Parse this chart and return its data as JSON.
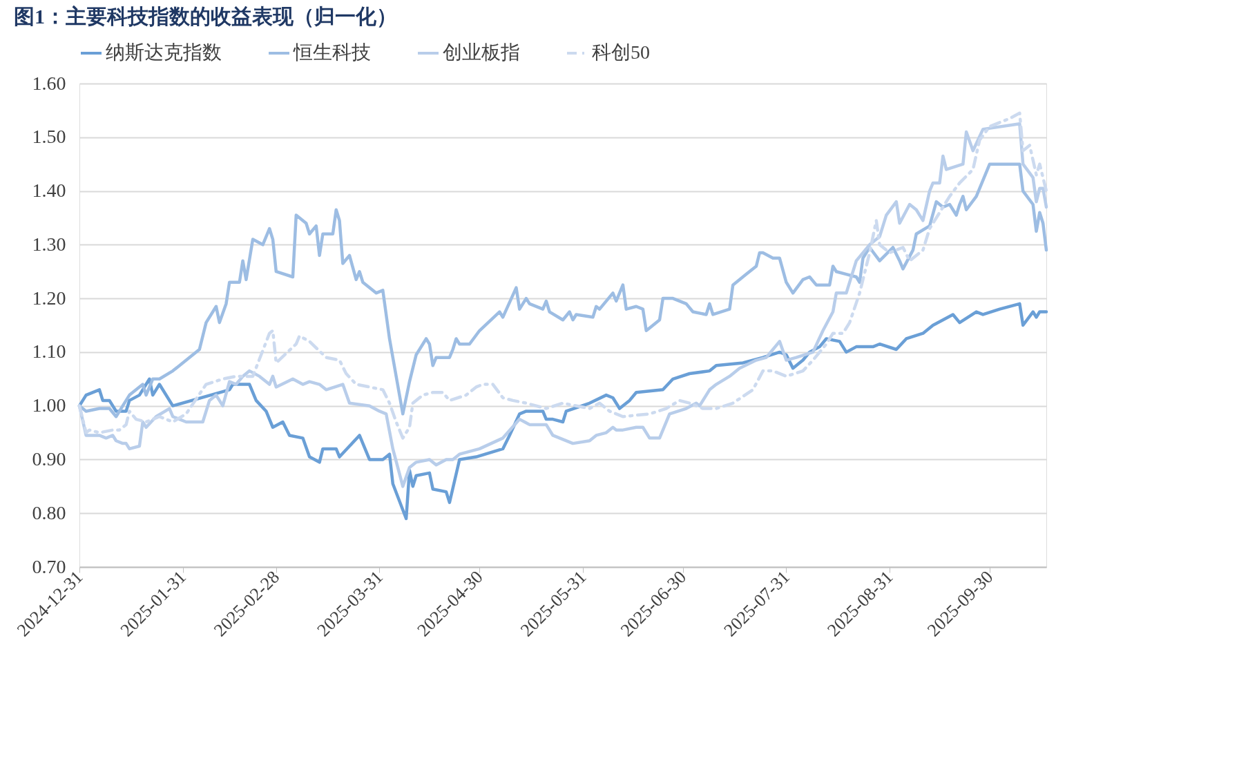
{
  "chart_data": {
    "type": "line",
    "title": "图1：主要科技指数的收益表现（归一化）",
    "xlim": [
      "2024-12-31",
      "2025-10-17"
    ],
    "xticks": [
      "2024-12-31",
      "2025-01-31",
      "2025-02-28",
      "2025-03-31",
      "2025-04-30",
      "2025-05-31",
      "2025-06-30",
      "2025-07-31",
      "2025-08-31",
      "2025-09-30"
    ],
    "ylim": [
      0.7,
      1.6
    ],
    "yticks": [
      {
        "value": 0.7,
        "label": "0.70"
      },
      {
        "value": 0.8,
        "label": "0.80"
      },
      {
        "value": 0.9,
        "label": "0.90"
      },
      {
        "value": 1.0,
        "label": "1.00"
      },
      {
        "value": 1.1,
        "label": "1.10"
      },
      {
        "value": 1.2,
        "label": "1.20"
      },
      {
        "value": 1.3,
        "label": "1.30"
      },
      {
        "value": 1.4,
        "label": "1.40"
      },
      {
        "value": 1.5,
        "label": "1.50"
      },
      {
        "value": 1.6,
        "label": "1.60"
      }
    ],
    "grid": "y",
    "legend": "top",
    "series": [
      {
        "name": "纳斯达克指数",
        "color": "#6a9fd6",
        "line_style": "solid",
        "x": [
          "2024-12-31",
          "2025-01-02",
          "2025-01-06",
          "2025-01-07",
          "2025-01-09",
          "2025-01-11",
          "2025-01-14",
          "2025-01-15",
          "2025-01-18",
          "2025-01-21",
          "2025-01-22",
          "2025-01-24",
          "2025-01-28",
          "2025-02-14",
          "2025-02-15",
          "2025-02-20",
          "2025-02-22",
          "2025-02-25",
          "2025-02-27",
          "2025-03-02",
          "2025-03-04",
          "2025-03-08",
          "2025-03-10",
          "2025-03-13",
          "2025-03-14",
          "2025-03-18",
          "2025-03-19",
          "2025-03-25",
          "2025-03-28",
          "2025-04-01",
          "2025-04-03",
          "2025-04-04",
          "2025-04-08",
          "2025-04-09",
          "2025-04-10",
          "2025-04-11",
          "2025-04-15",
          "2025-04-16",
          "2025-04-20",
          "2025-04-21",
          "2025-04-24",
          "2025-04-29",
          "2025-05-07",
          "2025-05-09",
          "2025-05-12",
          "2025-05-14",
          "2025-05-19",
          "2025-05-20",
          "2025-05-22",
          "2025-05-25",
          "2025-05-26",
          "2025-06-02",
          "2025-06-07",
          "2025-06-09",
          "2025-06-11",
          "2025-06-14",
          "2025-06-16",
          "2025-06-24",
          "2025-06-27",
          "2025-07-02",
          "2025-07-08",
          "2025-07-10",
          "2025-07-18",
          "2025-07-24",
          "2025-07-29",
          "2025-07-31",
          "2025-08-02",
          "2025-08-05",
          "2025-08-07",
          "2025-08-10",
          "2025-08-12",
          "2025-08-16",
          "2025-08-18",
          "2025-08-21",
          "2025-08-26",
          "2025-08-28",
          "2025-09-02",
          "2025-09-05",
          "2025-09-10",
          "2025-09-13",
          "2025-09-16",
          "2025-09-19",
          "2025-09-21",
          "2025-09-26",
          "2025-09-28",
          "2025-10-03",
          "2025-10-09",
          "2025-10-10",
          "2025-10-13",
          "2025-10-14",
          "2025-10-15",
          "2025-10-17"
        ],
        "values": [
          1.0,
          1.02,
          1.03,
          1.01,
          1.01,
          0.99,
          0.99,
          1.01,
          1.02,
          1.05,
          1.02,
          1.04,
          1.0,
          1.03,
          1.04,
          1.04,
          1.01,
          0.99,
          0.96,
          0.97,
          0.945,
          0.94,
          0.905,
          0.895,
          0.92,
          0.92,
          0.905,
          0.945,
          0.9,
          0.9,
          0.91,
          0.855,
          0.79,
          0.88,
          0.85,
          0.87,
          0.875,
          0.845,
          0.84,
          0.82,
          0.9,
          0.905,
          0.92,
          0.945,
          0.985,
          0.99,
          0.99,
          0.975,
          0.975,
          0.97,
          0.99,
          1.005,
          1.02,
          1.015,
          0.995,
          1.01,
          1.025,
          1.03,
          1.05,
          1.06,
          1.065,
          1.075,
          1.08,
          1.09,
          1.1,
          1.095,
          1.07,
          1.085,
          1.1,
          1.11,
          1.125,
          1.12,
          1.1,
          1.11,
          1.11,
          1.115,
          1.105,
          1.125,
          1.135,
          1.15,
          1.16,
          1.17,
          1.155,
          1.175,
          1.17,
          1.18,
          1.19,
          1.15,
          1.175,
          1.165,
          1.175,
          1.175
        ]
      },
      {
        "name": "恒生科技",
        "color": "#9dbde3",
        "line_style": "solid",
        "x": [
          "2024-12-31",
          "2025-01-02",
          "2025-01-06",
          "2025-01-09",
          "2025-01-11",
          "2025-01-13",
          "2025-01-15",
          "2025-01-17",
          "2025-01-19",
          "2025-01-20",
          "2025-01-22",
          "2025-01-24",
          "2025-01-28",
          "2025-02-05",
          "2025-02-07",
          "2025-02-10",
          "2025-02-11",
          "2025-02-13",
          "2025-02-14",
          "2025-02-17",
          "2025-02-18",
          "2025-02-19",
          "2025-02-21",
          "2025-02-24",
          "2025-02-26",
          "2025-02-27",
          "2025-02-28",
          "2025-03-05",
          "2025-03-06",
          "2025-03-09",
          "2025-03-10",
          "2025-03-12",
          "2025-03-13",
          "2025-03-14",
          "2025-03-17",
          "2025-03-18",
          "2025-03-19",
          "2025-03-20",
          "2025-03-22",
          "2025-03-24",
          "2025-03-25",
          "2025-03-26",
          "2025-03-30",
          "2025-04-01",
          "2025-04-03",
          "2025-04-07",
          "2025-04-09",
          "2025-04-11",
          "2025-04-14",
          "2025-04-15",
          "2025-04-16",
          "2025-04-17",
          "2025-04-21",
          "2025-04-22",
          "2025-04-23",
          "2025-04-24",
          "2025-04-27",
          "2025-04-30",
          "2025-05-06",
          "2025-05-07",
          "2025-05-11",
          "2025-05-12",
          "2025-05-14",
          "2025-05-15",
          "2025-05-19",
          "2025-05-20",
          "2025-05-21",
          "2025-05-25",
          "2025-05-27",
          "2025-05-28",
          "2025-05-29",
          "2025-06-03",
          "2025-06-04",
          "2025-06-05",
          "2025-06-09",
          "2025-06-10",
          "2025-06-12",
          "2025-06-13",
          "2025-06-16",
          "2025-06-18",
          "2025-06-19",
          "2025-06-20",
          "2025-06-23",
          "2025-06-24",
          "2025-06-27",
          "2025-07-01",
          "2025-07-03",
          "2025-07-07",
          "2025-07-08",
          "2025-07-09",
          "2025-07-14",
          "2025-07-15",
          "2025-07-19",
          "2025-07-22",
          "2025-07-23",
          "2025-07-24",
          "2025-07-27",
          "2025-07-29",
          "2025-07-31",
          "2025-08-02",
          "2025-08-05",
          "2025-08-07",
          "2025-08-09",
          "2025-08-11",
          "2025-08-13",
          "2025-08-14",
          "2025-08-15",
          "2025-08-18",
          "2025-08-21",
          "2025-08-22",
          "2025-08-23",
          "2025-08-25",
          "2025-08-28",
          "2025-09-01",
          "2025-09-03",
          "2025-09-04",
          "2025-09-07",
          "2025-09-08",
          "2025-09-12",
          "2025-09-14",
          "2025-09-16",
          "2025-09-18",
          "2025-09-20",
          "2025-09-21",
          "2025-09-22",
          "2025-09-23",
          "2025-09-26",
          "2025-09-30",
          "2025-10-09",
          "2025-10-10",
          "2025-10-13",
          "2025-10-14",
          "2025-10-15",
          "2025-10-16",
          "2025-10-17"
        ],
        "values": [
          1.0,
          0.99,
          0.995,
          0.995,
          0.98,
          1.0,
          1.02,
          1.03,
          1.04,
          1.02,
          1.05,
          1.05,
          1.065,
          1.105,
          1.155,
          1.185,
          1.155,
          1.19,
          1.23,
          1.23,
          1.27,
          1.235,
          1.31,
          1.3,
          1.33,
          1.31,
          1.25,
          1.24,
          1.355,
          1.34,
          1.32,
          1.335,
          1.28,
          1.32,
          1.32,
          1.365,
          1.345,
          1.265,
          1.28,
          1.235,
          1.25,
          1.23,
          1.21,
          1.215,
          1.125,
          0.985,
          1.045,
          1.095,
          1.125,
          1.115,
          1.075,
          1.09,
          1.09,
          1.105,
          1.125,
          1.115,
          1.115,
          1.14,
          1.175,
          1.165,
          1.22,
          1.18,
          1.2,
          1.19,
          1.18,
          1.195,
          1.175,
          1.16,
          1.175,
          1.16,
          1.17,
          1.165,
          1.185,
          1.18,
          1.21,
          1.195,
          1.225,
          1.18,
          1.185,
          1.18,
          1.14,
          1.145,
          1.16,
          1.2,
          1.2,
          1.19,
          1.175,
          1.17,
          1.19,
          1.17,
          1.18,
          1.225,
          1.245,
          1.26,
          1.285,
          1.285,
          1.275,
          1.275,
          1.23,
          1.21,
          1.235,
          1.24,
          1.225,
          1.225,
          1.225,
          1.26,
          1.25,
          1.245,
          1.24,
          1.23,
          1.275,
          1.295,
          1.27,
          1.295,
          1.27,
          1.255,
          1.29,
          1.32,
          1.335,
          1.38,
          1.37,
          1.375,
          1.355,
          1.375,
          1.39,
          1.365,
          1.39,
          1.45,
          1.45,
          1.4,
          1.375,
          1.325,
          1.36,
          1.34,
          1.29
        ]
      },
      {
        "name": "创业板指",
        "color": "#b8cdea",
        "line_style": "solid",
        "x": [
          "2024-12-31",
          "2025-01-02",
          "2025-01-06",
          "2025-01-08",
          "2025-01-10",
          "2025-01-11",
          "2025-01-13",
          "2025-01-14",
          "2025-01-15",
          "2025-01-18",
          "2025-01-19",
          "2025-01-20",
          "2025-01-23",
          "2025-01-27",
          "2025-01-28",
          "2025-02-01",
          "2025-02-06",
          "2025-02-08",
          "2025-02-10",
          "2025-02-12",
          "2025-02-14",
          "2025-02-16",
          "2025-02-18",
          "2025-02-20",
          "2025-02-23",
          "2025-02-26",
          "2025-02-27",
          "2025-02-28",
          "2025-03-05",
          "2025-03-08",
          "2025-03-10",
          "2025-03-13",
          "2025-03-15",
          "2025-03-20",
          "2025-03-22",
          "2025-03-28",
          "2025-03-31",
          "2025-04-02",
          "2025-04-04",
          "2025-04-07",
          "2025-04-09",
          "2025-04-11",
          "2025-04-15",
          "2025-04-17",
          "2025-04-20",
          "2025-04-22",
          "2025-04-24",
          "2025-04-30",
          "2025-05-07",
          "2025-05-12",
          "2025-05-15",
          "2025-05-20",
          "2025-05-22",
          "2025-05-28",
          "2025-06-02",
          "2025-06-04",
          "2025-06-07",
          "2025-06-09",
          "2025-06-10",
          "2025-06-12",
          "2025-06-16",
          "2025-06-18",
          "2025-06-20",
          "2025-06-23",
          "2025-06-26",
          "2025-07-01",
          "2025-07-04",
          "2025-07-05",
          "2025-07-08",
          "2025-07-10",
          "2025-07-14",
          "2025-07-17",
          "2025-07-22",
          "2025-07-25",
          "2025-07-29",
          "2025-07-31",
          "2025-08-03",
          "2025-08-08",
          "2025-08-11",
          "2025-08-14",
          "2025-08-15",
          "2025-08-18",
          "2025-08-21",
          "2025-08-25",
          "2025-08-28",
          "2025-08-30",
          "2025-09-02",
          "2025-09-03",
          "2025-09-06",
          "2025-09-08",
          "2025-09-10",
          "2025-09-12",
          "2025-09-13",
          "2025-09-15",
          "2025-09-16",
          "2025-09-17",
          "2025-09-22",
          "2025-09-23",
          "2025-09-25",
          "2025-09-28",
          "2025-10-09",
          "2025-10-10",
          "2025-10-13",
          "2025-10-14",
          "2025-10-15",
          "2025-10-16",
          "2025-10-17"
        ],
        "values": [
          1.0,
          0.945,
          0.945,
          0.94,
          0.945,
          0.935,
          0.93,
          0.93,
          0.92,
          0.925,
          0.97,
          0.96,
          0.98,
          0.995,
          0.98,
          0.97,
          0.97,
          1.01,
          1.02,
          1.0,
          1.045,
          1.04,
          1.055,
          1.065,
          1.055,
          1.04,
          1.055,
          1.035,
          1.05,
          1.04,
          1.045,
          1.04,
          1.03,
          1.04,
          1.005,
          1.0,
          0.99,
          0.985,
          0.92,
          0.85,
          0.885,
          0.895,
          0.9,
          0.89,
          0.9,
          0.9,
          0.91,
          0.92,
          0.94,
          0.975,
          0.965,
          0.965,
          0.945,
          0.93,
          0.935,
          0.945,
          0.95,
          0.96,
          0.955,
          0.955,
          0.96,
          0.96,
          0.94,
          0.94,
          0.985,
          0.995,
          1.005,
          1.0,
          1.03,
          1.04,
          1.055,
          1.07,
          1.085,
          1.09,
          1.12,
          1.085,
          1.09,
          1.1,
          1.14,
          1.175,
          1.21,
          1.21,
          1.27,
          1.3,
          1.315,
          1.355,
          1.38,
          1.34,
          1.375,
          1.365,
          1.345,
          1.4,
          1.415,
          1.415,
          1.465,
          1.44,
          1.45,
          1.51,
          1.475,
          1.515,
          1.525,
          1.45,
          1.425,
          1.38,
          1.405,
          1.405,
          1.37
        ]
      },
      {
        "name": "科创50",
        "color": "#ccdaef",
        "line_style": "dashed",
        "x": [
          "2024-12-31",
          "2025-01-02",
          "2025-01-03",
          "2025-01-06",
          "2025-01-10",
          "2025-01-12",
          "2025-01-14",
          "2025-01-15",
          "2025-01-17",
          "2025-01-20",
          "2025-01-24",
          "2025-01-28",
          "2025-02-01",
          "2025-02-07",
          "2025-02-12",
          "2025-02-16",
          "2025-02-21",
          "2025-02-26",
          "2025-02-27",
          "2025-02-28",
          "2025-03-06",
          "2025-03-07",
          "2025-03-10",
          "2025-03-15",
          "2025-03-19",
          "2025-03-21",
          "2025-03-24",
          "2025-03-28",
          "2025-04-01",
          "2025-04-03",
          "2025-04-05",
          "2025-04-07",
          "2025-04-09",
          "2025-04-10",
          "2025-04-13",
          "2025-04-16",
          "2025-04-19",
          "2025-04-21",
          "2025-04-26",
          "2025-04-29",
          "2025-05-01",
          "2025-05-04",
          "2025-05-07",
          "2025-05-10",
          "2025-05-14",
          "2025-05-20",
          "2025-05-25",
          "2025-06-02",
          "2025-06-05",
          "2025-06-08",
          "2025-06-12",
          "2025-06-20",
          "2025-06-25",
          "2025-06-29",
          "2025-07-02",
          "2025-07-06",
          "2025-07-10",
          "2025-07-15",
          "2025-07-21",
          "2025-07-24",
          "2025-07-27",
          "2025-07-31",
          "2025-08-05",
          "2025-08-08",
          "2025-08-12",
          "2025-08-14",
          "2025-08-17",
          "2025-08-19",
          "2025-08-22",
          "2025-08-25",
          "2025-08-27",
          "2025-08-28",
          "2025-08-31",
          "2025-09-04",
          "2025-09-06",
          "2025-09-10",
          "2025-09-12",
          "2025-09-15",
          "2025-09-18",
          "2025-09-21",
          "2025-09-25",
          "2025-09-27",
          "2025-09-30",
          "2025-10-06",
          "2025-10-09",
          "2025-10-10",
          "2025-10-12",
          "2025-10-14",
          "2025-10-15",
          "2025-10-17"
        ],
        "values": [
          1.0,
          0.95,
          0.955,
          0.95,
          0.955,
          0.955,
          0.965,
          0.99,
          0.975,
          0.97,
          0.98,
          0.97,
          0.985,
          1.04,
          1.05,
          1.055,
          1.055,
          1.135,
          1.14,
          1.08,
          1.115,
          1.13,
          1.12,
          1.09,
          1.085,
          1.06,
          1.04,
          1.035,
          1.03,
          1.005,
          0.97,
          0.94,
          0.96,
          1.005,
          1.02,
          1.025,
          1.025,
          1.01,
          1.02,
          1.035,
          1.04,
          1.04,
          1.015,
          1.01,
          1.005,
          0.995,
          1.005,
          0.995,
          1.005,
          0.99,
          0.98,
          0.985,
          0.995,
          1.01,
          1.005,
          0.995,
          0.995,
          1.005,
          1.03,
          1.065,
          1.065,
          1.055,
          1.065,
          1.085,
          1.115,
          1.135,
          1.135,
          1.155,
          1.21,
          1.285,
          1.345,
          1.3,
          1.285,
          1.295,
          1.27,
          1.29,
          1.33,
          1.36,
          1.39,
          1.415,
          1.44,
          1.495,
          1.52,
          1.535,
          1.545,
          1.475,
          1.485,
          1.43,
          1.45,
          1.4
        ]
      }
    ]
  }
}
